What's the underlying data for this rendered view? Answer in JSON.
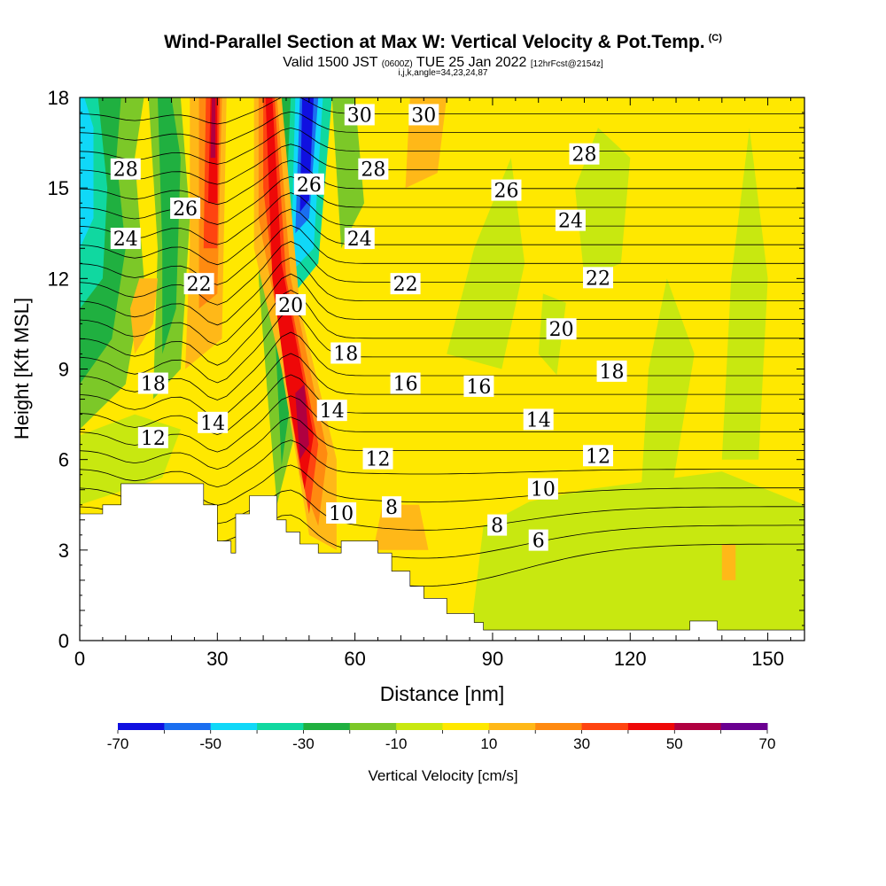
{
  "header": {
    "title_main": "Wind-Parallel Section at Max W: Vertical Velocity & Pot.Temp.",
    "title_mark": "(C)",
    "valid_prefix": "Valid 1500 JST",
    "valid_utc": "(0600Z)",
    "valid_date": "TUE 25 Jan 2022",
    "fcst": "[12hrFcst@2154z]",
    "indices": "i,j,k,angle=34,23,24,87"
  },
  "chart_data": {
    "type": "heatmap",
    "xlabel": "Distance [nm]",
    "ylabel": "Height [Kft MSL]",
    "xlim": [
      0,
      158
    ],
    "ylim": [
      0,
      18
    ],
    "x_ticks": [
      0,
      30,
      60,
      90,
      120,
      150
    ],
    "y_ticks": [
      0,
      3,
      6,
      9,
      12,
      15,
      18
    ],
    "colorbar": {
      "label": "Vertical Velocity [cm/s]",
      "ticks": [
        -70,
        -50,
        -30,
        -10,
        10,
        30,
        50,
        70
      ],
      "colors": [
        "#1010e0",
        "#1a6ef0",
        "#10d8f8",
        "#10d8a0",
        "#20b040",
        "#7cc828",
        "#c8e810",
        "#ffe800",
        "#ffb818",
        "#ff8a10",
        "#ff4410",
        "#ee0808",
        "#b00040",
        "#6a0090"
      ]
    },
    "contour_labels": [
      {
        "text": "30",
        "x": 61,
        "y": 17.4
      },
      {
        "text": "30",
        "x": 75,
        "y": 17.4
      },
      {
        "text": "28",
        "x": 10,
        "y": 15.6
      },
      {
        "text": "28",
        "x": 64,
        "y": 15.6
      },
      {
        "text": "28",
        "x": 110,
        "y": 16.1
      },
      {
        "text": "26",
        "x": 23,
        "y": 14.3
      },
      {
        "text": "26",
        "x": 50,
        "y": 15.1
      },
      {
        "text": "26",
        "x": 93,
        "y": 14.9
      },
      {
        "text": "24",
        "x": 10,
        "y": 13.3
      },
      {
        "text": "24",
        "x": 61,
        "y": 13.3
      },
      {
        "text": "24",
        "x": 107,
        "y": 13.9
      },
      {
        "text": "22",
        "x": 26,
        "y": 11.8
      },
      {
        "text": "22",
        "x": 71,
        "y": 11.8
      },
      {
        "text": "22",
        "x": 113,
        "y": 12.0
      },
      {
        "text": "20",
        "x": 46,
        "y": 11.1
      },
      {
        "text": "20",
        "x": 105,
        "y": 10.3
      },
      {
        "text": "18",
        "x": 16,
        "y": 8.5
      },
      {
        "text": "18",
        "x": 58,
        "y": 9.5
      },
      {
        "text": "18",
        "x": 116,
        "y": 8.9
      },
      {
        "text": "16",
        "x": 71,
        "y": 8.5
      },
      {
        "text": "16",
        "x": 87,
        "y": 8.4
      },
      {
        "text": "14",
        "x": 29,
        "y": 7.2
      },
      {
        "text": "14",
        "x": 55,
        "y": 7.6
      },
      {
        "text": "14",
        "x": 100,
        "y": 7.3
      },
      {
        "text": "12",
        "x": 16,
        "y": 6.7
      },
      {
        "text": "12",
        "x": 65,
        "y": 6.0
      },
      {
        "text": "12",
        "x": 113,
        "y": 6.1
      },
      {
        "text": "10",
        "x": 57,
        "y": 4.2
      },
      {
        "text": "10",
        "x": 101,
        "y": 5.0
      },
      {
        "text": "8",
        "x": 68,
        "y": 4.4
      },
      {
        "text": "8",
        "x": 91,
        "y": 3.8
      },
      {
        "text": "6",
        "x": 100,
        "y": 3.3
      }
    ]
  }
}
